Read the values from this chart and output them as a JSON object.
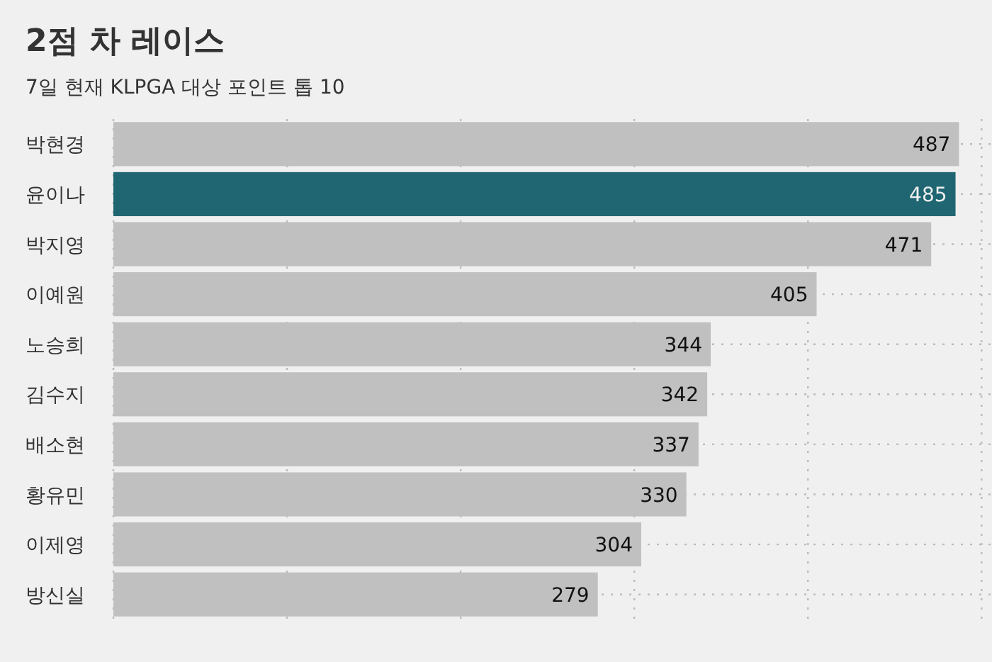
{
  "chart_data": {
    "type": "bar",
    "orientation": "horizontal",
    "title": "2점 차 레이스",
    "subtitle": "7일 현재 KLPGA 대상 포인트 톱 10",
    "categories": [
      "박현경",
      "윤이나",
      "박지영",
      "이예원",
      "노승희",
      "김수지",
      "배소현",
      "황유민",
      "이제영",
      "방신실"
    ],
    "values": [
      487,
      485,
      471,
      405,
      344,
      342,
      337,
      330,
      304,
      279
    ],
    "colors": [
      "#c0c0c0",
      "#1f6672",
      "#c0c0c0",
      "#c0c0c0",
      "#c0c0c0",
      "#c0c0c0",
      "#c0c0c0",
      "#c0c0c0",
      "#c0c0c0",
      "#c0c0c0"
    ],
    "xlim": [
      0,
      506
    ],
    "xticks": [
      {
        "value": 0,
        "label": null
      },
      {
        "value": 100,
        "label": null
      },
      {
        "value": 200,
        "label": null
      },
      {
        "value": 300,
        "label": null
      },
      {
        "value": 400,
        "label": null
      },
      {
        "value": 500,
        "label": null
      }
    ],
    "tick_labels": "y",
    "grid": true,
    "data_labels": true
  }
}
